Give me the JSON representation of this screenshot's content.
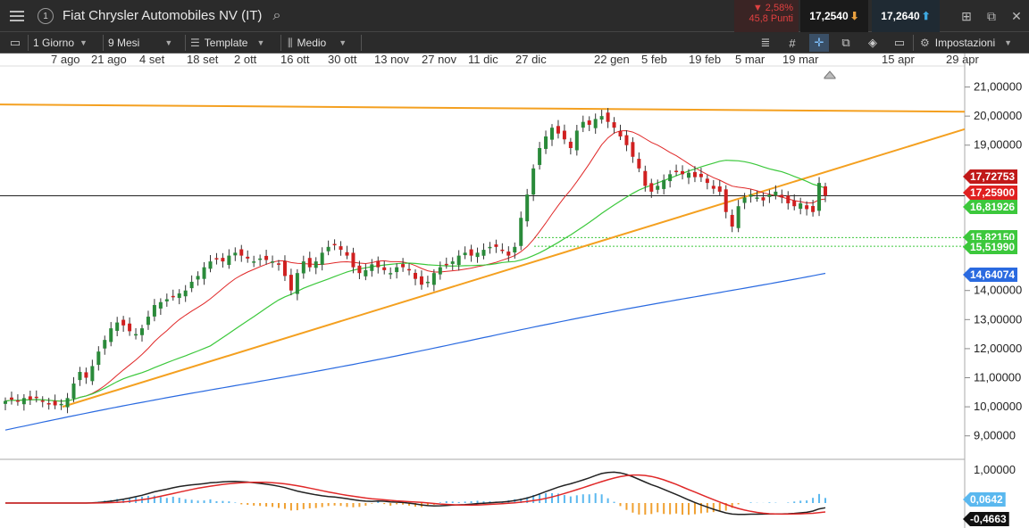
{
  "window": {
    "title": "Fiat Chrysler Automobiles NV (IT)",
    "change_pct": "▼ 2,58%",
    "change_pts": "45,8 Punti",
    "bid": "17,2540",
    "ask": "17,2640"
  },
  "toolbar": {
    "period": "1 Giorno",
    "range": "9 Mesi",
    "template": "Template",
    "style": "Medio",
    "settings": "Impostazioni"
  },
  "xaxis_labels": [
    "7 ago",
    "21 ago",
    "4 set",
    "18 set",
    "2 ott",
    "16 ott",
    "30 ott",
    "13 nov",
    "27 nov",
    "11 dic",
    "27 dic",
    "22 gen",
    "5 feb",
    "19 feb",
    "5 mar",
    "19 mar",
    "15 apr",
    "29 apr"
  ],
  "yaxis_labels": [
    "21,00000",
    "20,00000",
    "19,00000",
    "14,00000",
    "13,00000",
    "12,00000",
    "11,00000",
    "10,00000",
    "9,00000"
  ],
  "price_tags": {
    "ma_red": "17,72753",
    "last": "17,25900",
    "ma_green": "16,81926",
    "support1": "15,82150",
    "support2": "15,51990",
    "ma_blue": "14,64074"
  },
  "macd": {
    "axis_top": "1,00000",
    "hist_value": "0,0642",
    "macd_value": "-0,4663"
  },
  "colors": {
    "up": "#2a8a3a",
    "down": "#d02020",
    "ma_red": "#e02828",
    "ma_green": "#3cc83c",
    "ma_blue": "#2a6ae0",
    "trend": "#f4a020"
  },
  "chart_data": {
    "type": "candlestick",
    "ylim": [
      8.5,
      21.6
    ],
    "candles_close": [
      10.2,
      10.25,
      10.2,
      10.3,
      10.25,
      10.3,
      10.2,
      10.1,
      10.05,
      10.1,
      10.3,
      10.8,
      11.2,
      11.0,
      11.4,
      11.9,
      12.3,
      12.7,
      12.9,
      12.8,
      12.6,
      12.5,
      12.7,
      13.1,
      13.5,
      13.6,
      13.7,
      13.8,
      13.9,
      14.0,
      14.3,
      14.5,
      14.8,
      15.0,
      15.1,
      15.0,
      15.2,
      15.3,
      15.2,
      15.1,
      15.0,
      15.1,
      15.05,
      15.0,
      14.9,
      14.5,
      14.0,
      14.6,
      15.0,
      14.8,
      15.0,
      15.3,
      15.5,
      15.6,
      15.4,
      15.2,
      14.8,
      14.6,
      14.7,
      14.9,
      14.8,
      14.7,
      14.6,
      14.8,
      14.8,
      14.7,
      14.4,
      14.2,
      14.3,
      14.6,
      14.8,
      14.9,
      15.0,
      15.2,
      15.3,
      15.2,
      15.3,
      15.4,
      15.5,
      15.5,
      15.4,
      15.2,
      15.5,
      16.5,
      17.3,
      18.2,
      18.9,
      19.3,
      19.6,
      19.4,
      19.2,
      18.9,
      19.5,
      19.8,
      19.7,
      19.9,
      20.0,
      19.8,
      19.6,
      19.3,
      19.0,
      18.6,
      18.2,
      17.6,
      17.4,
      17.6,
      17.8,
      18.0,
      18.1,
      18.0,
      18.05,
      17.9,
      17.9,
      17.7,
      17.5,
      17.4,
      16.7,
      16.2,
      16.9,
      17.2,
      17.3,
      17.2,
      17.1,
      17.3,
      17.4,
      17.2,
      17.0,
      16.9,
      17.0,
      16.8,
      16.7,
      17.7,
      17.26
    ]
  }
}
